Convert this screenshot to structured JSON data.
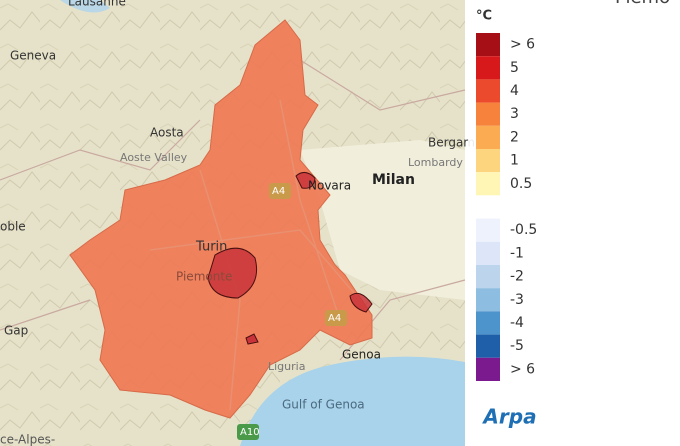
{
  "header": {
    "title": "Piemo"
  },
  "map": {
    "labels": [
      "Lausanne",
      "Geneva",
      "Aosta",
      "Aoste Valley",
      "Bergam",
      "Lombardy",
      "Novara",
      "Milan",
      "oble",
      "Turin",
      "Piemonte",
      "Gap",
      "Genoa",
      "Liguria",
      "Gulf of Genoa",
      "ce-Alpes-",
      "A4",
      "A4",
      "A10"
    ]
  },
  "legend": {
    "title": "°C",
    "items": [
      {
        "label": "> 6",
        "color": "#a50f15"
      },
      {
        "label": "5",
        "color": "#d7191c"
      },
      {
        "label": "4",
        "color": "#ec4a2c"
      },
      {
        "label": "3",
        "color": "#f6823b"
      },
      {
        "label": "2",
        "color": "#fbab52"
      },
      {
        "label": "1",
        "color": "#fdd57f"
      },
      {
        "label": "0.5",
        "color": "#fff6b5"
      },
      {
        "label": null,
        "color": "#ffffff"
      },
      {
        "label": "-0.5",
        "color": "#eef2fd"
      },
      {
        "label": "-1",
        "color": "#dde6f8"
      },
      {
        "label": "-2",
        "color": "#bcd4ec"
      },
      {
        "label": "-3",
        "color": "#8dbde0"
      },
      {
        "label": "-4",
        "color": "#4d93cc"
      },
      {
        "label": "-5",
        "color": "#1f5ea8"
      },
      {
        "label": "> 6",
        "color": "#7b1a8e"
      }
    ]
  },
  "logo": {
    "text": "Arpa"
  }
}
